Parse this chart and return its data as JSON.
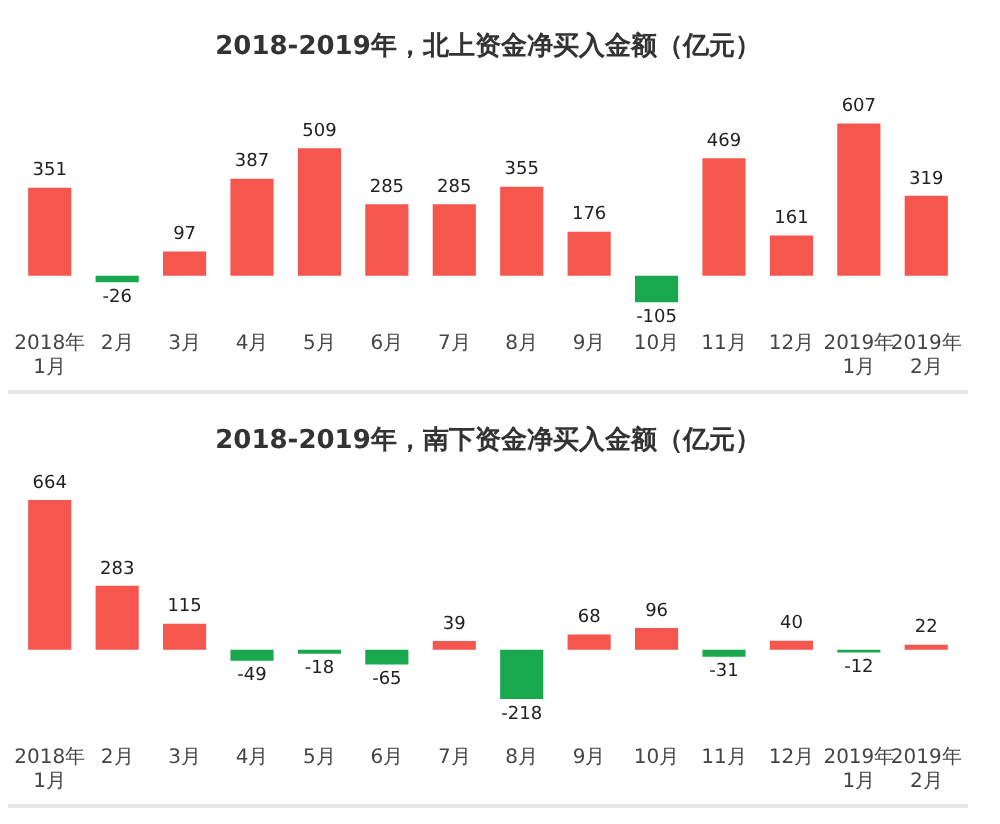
{
  "chart_data": [
    {
      "type": "bar",
      "title": "2018-2019年，北上资金净买入金额（亿元）",
      "categories": [
        "2018年1月",
        "2月",
        "3月",
        "4月",
        "5月",
        "6月",
        "7月",
        "8月",
        "9月",
        "10月",
        "11月",
        "12月",
        "2019年1月",
        "2019年2月"
      ],
      "values": [
        351,
        -26,
        97,
        387,
        509,
        285,
        285,
        355,
        176,
        -105,
        469,
        161,
        607,
        319
      ],
      "colors": [
        "#f5564e",
        "#1aa84f",
        "#f5564e",
        "#f5564e",
        "#f5564e",
        "#f5564e",
        "#f5564e",
        "#f5564e",
        "#f5564e",
        "#1aa84f",
        "#f5564e",
        "#f5564e",
        "#f5564e",
        "#f5564e"
      ],
      "data_labels": true,
      "grid": false,
      "legend": false
    },
    {
      "type": "bar",
      "title": "2018-2019年，南下资金净买入金额（亿元）",
      "categories": [
        "2018年1月",
        "2月",
        "3月",
        "4月",
        "5月",
        "6月",
        "7月",
        "8月",
        "9月",
        "10月",
        "11月",
        "12月",
        "2019年1月",
        "2019年2月"
      ],
      "values": [
        664,
        283,
        115,
        -49,
        -18,
        -65,
        39,
        -218,
        68,
        96,
        -31,
        40,
        -12,
        22
      ],
      "colors": [
        "#f5564e",
        "#f5564e",
        "#f5564e",
        "#1aa84f",
        "#1aa84f",
        "#1aa84f",
        "#f5564e",
        "#1aa84f",
        "#f5564e",
        "#f5564e",
        "#1aa84f",
        "#f5564e",
        "#1aa84f",
        "#f5564e"
      ],
      "data_labels": true,
      "grid": false,
      "legend": false
    }
  ]
}
